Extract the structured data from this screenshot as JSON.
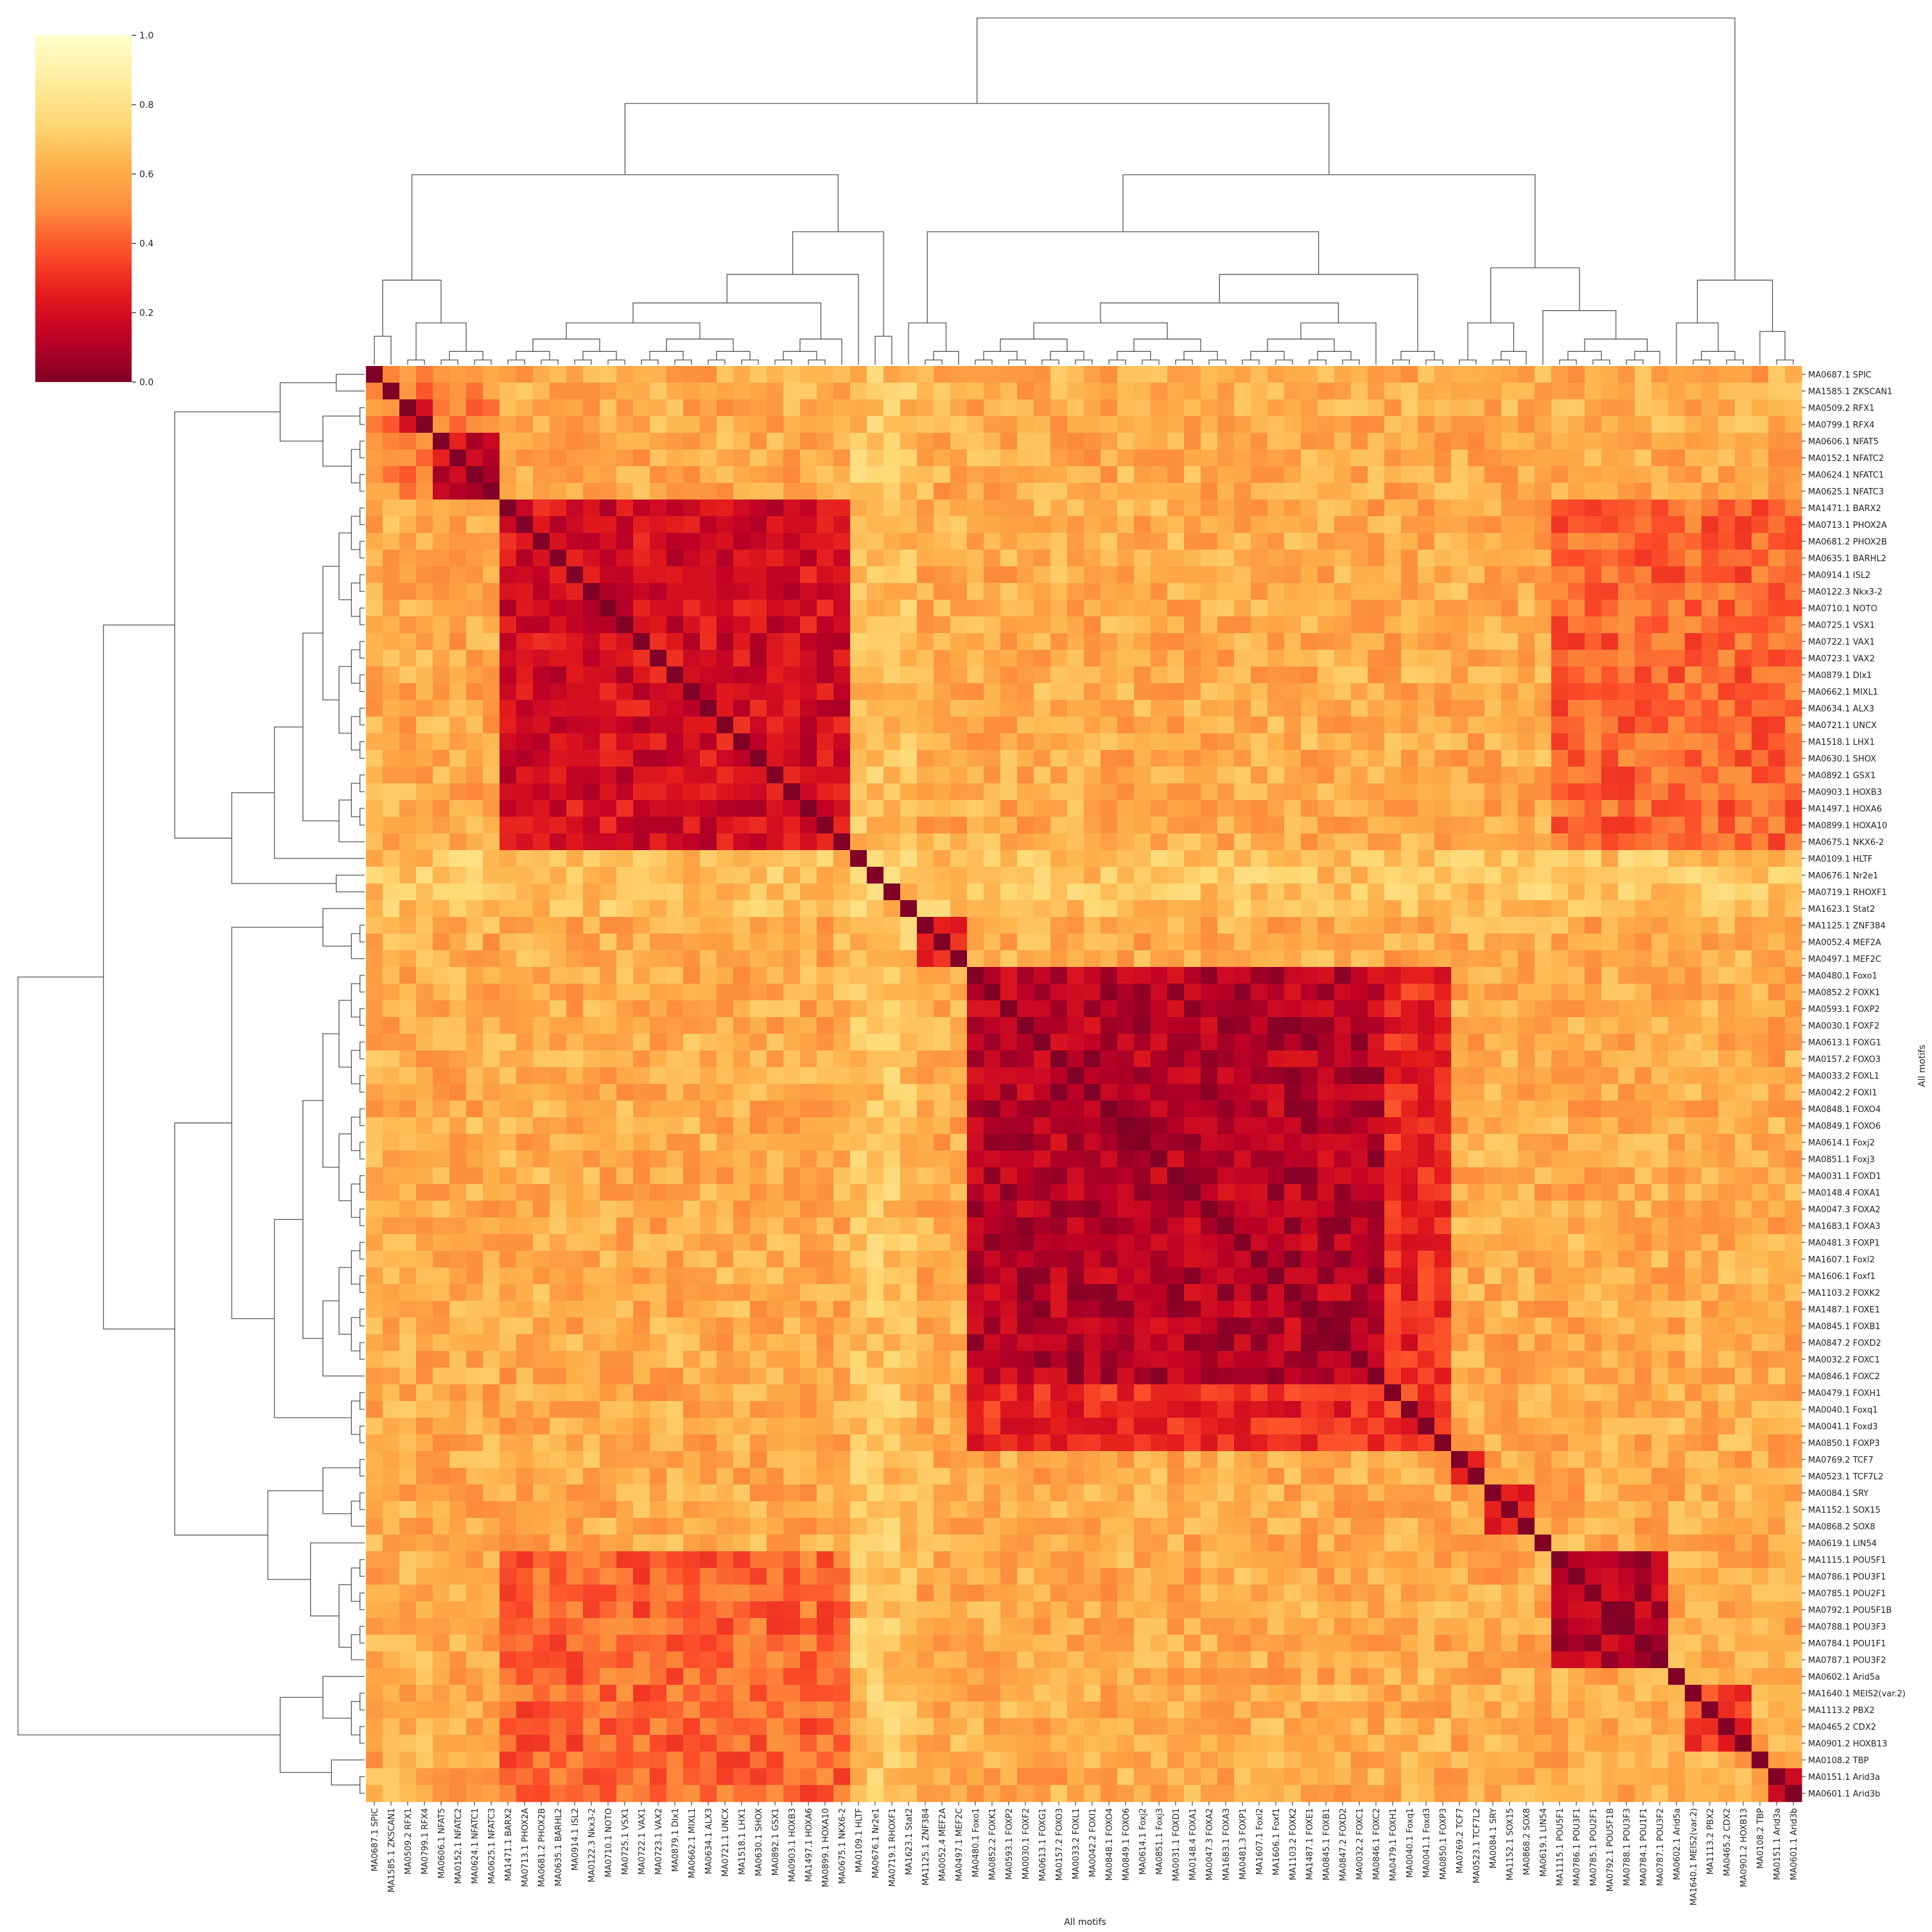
{
  "chart_data": {
    "type": "heatmap",
    "subtype": "clustermap",
    "xlabel": "All motifs",
    "ylabel": "All motifs",
    "colormap": "YlOrRd_r",
    "colorbar": {
      "min": 0.0,
      "max": 1.0,
      "ticks": [
        "0.0",
        "0.2",
        "0.4",
        "0.6",
        "0.8",
        "1.0"
      ]
    },
    "colors": {
      "low": "#800026",
      "mid": "#fc4e2a",
      "high": "#ffffcc",
      "dendrogram": "#555555"
    },
    "motifs": [
      "MA0687.1 SPIC",
      "MA1585.1 ZKSCAN1",
      "MA0509.2 RFX1",
      "MA0799.1 RFX4",
      "MA0606.1 NFAT5",
      "MA0152.1 NFATC2",
      "MA0624.1 NFATC1",
      "MA0625.1 NFATC3",
      "MA1471.1 BARX2",
      "MA0713.1 PHOX2A",
      "MA0681.2 PHOX2B",
      "MA0635.1 BARHL2",
      "MA0914.1 ISL2",
      "MA0122.3 Nkx3-2",
      "MA0710.1 NOTO",
      "MA0725.1 VSX1",
      "MA0722.1 VAX1",
      "MA0723.1 VAX2",
      "MA0879.1 Dlx1",
      "MA0662.1 MIXL1",
      "MA0634.1 ALX3",
      "MA0721.1 UNCX",
      "MA1518.1 LHX1",
      "MA0630.1 SHOX",
      "MA0892.1 GSX1",
      "MA0903.1 HOXB3",
      "MA1497.1 HOXA6",
      "MA0899.1 HOXA10",
      "MA0675.1 NKX6-2",
      "MA0109.1 HLTF",
      "MA0676.1 Nr2e1",
      "MA0719.1 RHOXF1",
      "MA1623.1 Stat2",
      "MA1125.1 ZNF384",
      "MA0052.4 MEF2A",
      "MA0497.1 MEF2C",
      "MA0480.1 Foxo1",
      "MA0852.2 FOXK1",
      "MA0593.1 FOXP2",
      "MA0030.1 FOXF2",
      "MA0613.1 FOXG1",
      "MA0157.2 FOXO3",
      "MA0033.2 FOXL1",
      "MA0042.2 FOXI1",
      "MA0848.1 FOXO4",
      "MA0849.1 FOXO6",
      "MA0614.1 Foxj2",
      "MA0851.1 Foxj3",
      "MA0031.1 FOXD1",
      "MA0148.4 FOXA1",
      "MA0047.3 FOXA2",
      "MA1683.1 FOXA3",
      "MA0481.3 FOXP1",
      "MA1607.1 Foxl2",
      "MA1606.1 Foxf1",
      "MA1103.2 FOXK2",
      "MA1487.1 FOXE1",
      "MA0845.1 FOXB1",
      "MA0847.2 FOXD2",
      "MA0032.2 FOXC1",
      "MA0846.1 FOXC2",
      "MA0479.1 FOXH1",
      "MA0040.1 Foxq1",
      "MA0041.1 Foxd3",
      "MA0850.1 FOXP3",
      "MA0769.2 TCF7",
      "MA0523.1 TCF7L2",
      "MA0084.1 SRY",
      "MA1152.1 SOX15",
      "MA0868.2 SOX8",
      "MA0619.1 LIN54",
      "MA1115.1 POU5F1",
      "MA0786.1 POU3F1",
      "MA0785.1 POU2F1",
      "MA0792.1 POU5F1B",
      "MA0788.1 POU3F3",
      "MA0784.1 POU1F1",
      "MA0787.1 POU3F2",
      "MA0602.1 Arid5a",
      "MA1640.1 MEIS2(var.2)",
      "MA1113.2 PBX2",
      "MA0465.2 CDX2",
      "MA0901.2 HOXB13",
      "MA0108.2 TBP",
      "MA0151.1 Arid3a",
      "MA0601.1 Arid3b"
    ],
    "cluster_blocks": [
      {
        "range": [
          0,
          0
        ],
        "within": 0.0
      },
      {
        "range": [
          1,
          1
        ],
        "within": 0.0
      },
      {
        "range": [
          2,
          3
        ],
        "within": 0.18
      },
      {
        "range": [
          4,
          7
        ],
        "within": 0.16
      },
      {
        "range": [
          8,
          28
        ],
        "within": 0.2
      },
      {
        "range": [
          29,
          29
        ],
        "within": 0.0
      },
      {
        "range": [
          30,
          30
        ],
        "within": 0.0
      },
      {
        "range": [
          31,
          31
        ],
        "within": 0.0
      },
      {
        "range": [
          32,
          32
        ],
        "within": 0.0
      },
      {
        "range": [
          33,
          35
        ],
        "within": 0.22
      },
      {
        "range": [
          36,
          60
        ],
        "within": 0.12
      },
      {
        "range": [
          61,
          64
        ],
        "within": 0.3
      },
      {
        "range": [
          65,
          66
        ],
        "within": 0.18
      },
      {
        "range": [
          67,
          69
        ],
        "within": 0.22
      },
      {
        "range": [
          70,
          70
        ],
        "within": 0.0
      },
      {
        "range": [
          71,
          77
        ],
        "within": 0.12
      },
      {
        "range": [
          78,
          78
        ],
        "within": 0.0
      },
      {
        "range": [
          79,
          82
        ],
        "within": 0.3
      },
      {
        "range": [
          83,
          83
        ],
        "within": 0.0
      },
      {
        "range": [
          84,
          85
        ],
        "within": 0.15
      }
    ],
    "background_value": 0.6,
    "cross_block_values": [
      {
        "rows": [
          8,
          28
        ],
        "cols": [
          71,
          85
        ],
        "value": 0.42
      },
      {
        "rows": [
          36,
          60
        ],
        "cols": [
          61,
          64
        ],
        "value": 0.28
      },
      {
        "rows": [
          61,
          64
        ],
        "cols": [
          36,
          60
        ],
        "value": 0.28
      },
      {
        "rows": [
          71,
          85
        ],
        "cols": [
          8,
          28
        ],
        "value": 0.42
      },
      {
        "rows": [
          0,
          7
        ],
        "cols": [
          0,
          7
        ],
        "value": 0.5
      },
      {
        "rows": [
          29,
          32
        ],
        "cols": [
          0,
          85
        ],
        "value": 0.68
      },
      {
        "rows": [
          0,
          85
        ],
        "cols": [
          29,
          32
        ],
        "value": 0.68
      }
    ]
  }
}
